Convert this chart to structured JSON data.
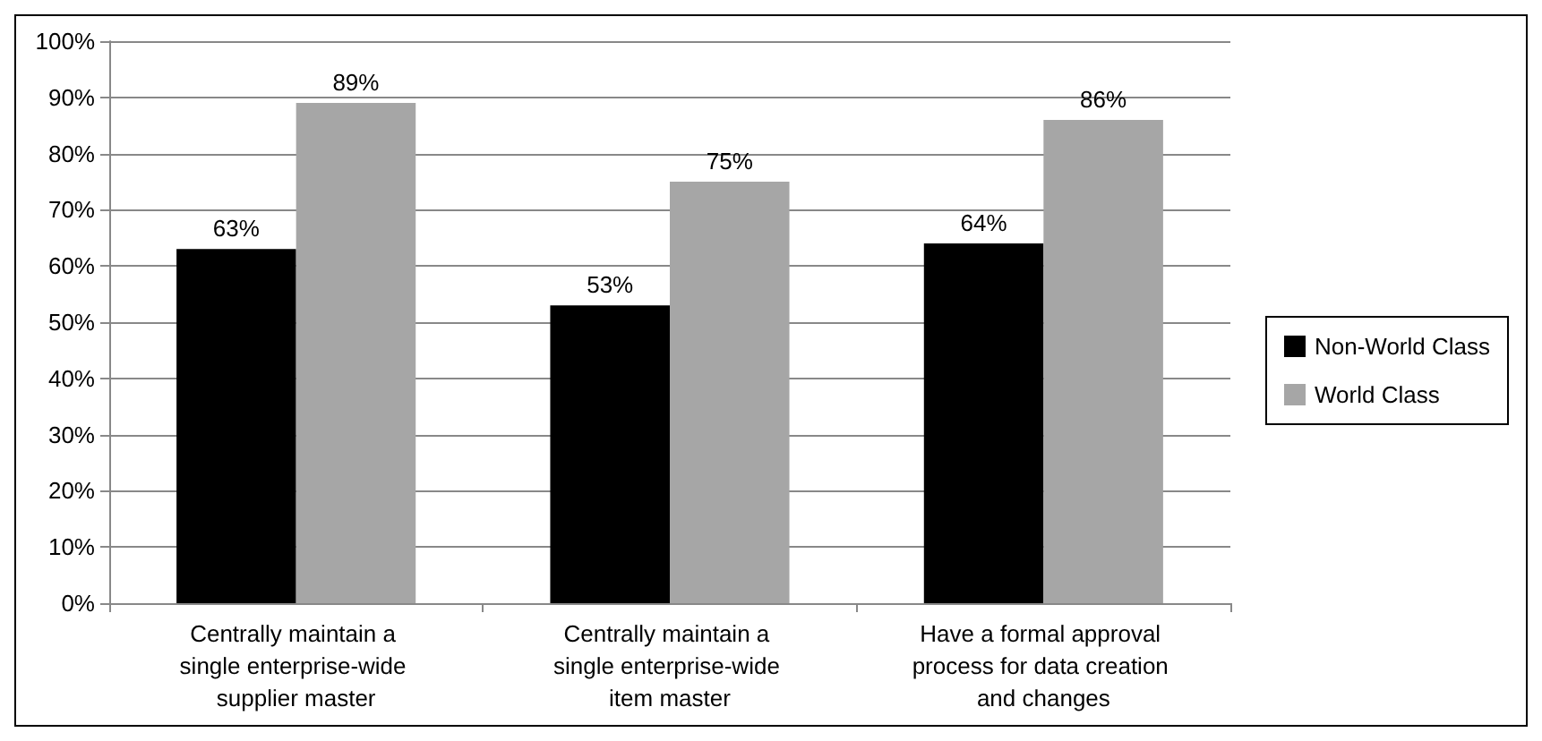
{
  "chart_data": {
    "type": "bar",
    "categories": [
      "Centrally maintain a single enterprise-wide supplier master",
      "Centrally maintain a single enterprise-wide item master",
      "Have a formal approval process for data creation and changes"
    ],
    "series": [
      {
        "name": "Non-World Class",
        "color": "#000000",
        "values": [
          63,
          53,
          64
        ],
        "value_labels": [
          "63%",
          "53%",
          "64%"
        ]
      },
      {
        "name": "World Class",
        "color": "#a6a6a6",
        "values": [
          89,
          75,
          86
        ],
        "value_labels": [
          "89%",
          "75%",
          "86%"
        ]
      }
    ],
    "ylim": [
      0,
      100
    ],
    "yticks": [
      {
        "value": 0,
        "label": "0%"
      },
      {
        "value": 10,
        "label": "10%"
      },
      {
        "value": 20,
        "label": "20%"
      },
      {
        "value": 30,
        "label": "30%"
      },
      {
        "value": 40,
        "label": "40%"
      },
      {
        "value": 50,
        "label": "50%"
      },
      {
        "value": 60,
        "label": "60%"
      },
      {
        "value": 70,
        "label": "70%"
      },
      {
        "value": 80,
        "label": "80%"
      },
      {
        "value": 90,
        "label": "90%"
      },
      {
        "value": 100,
        "label": "100%"
      }
    ],
    "grid": "y",
    "legend": "right"
  }
}
